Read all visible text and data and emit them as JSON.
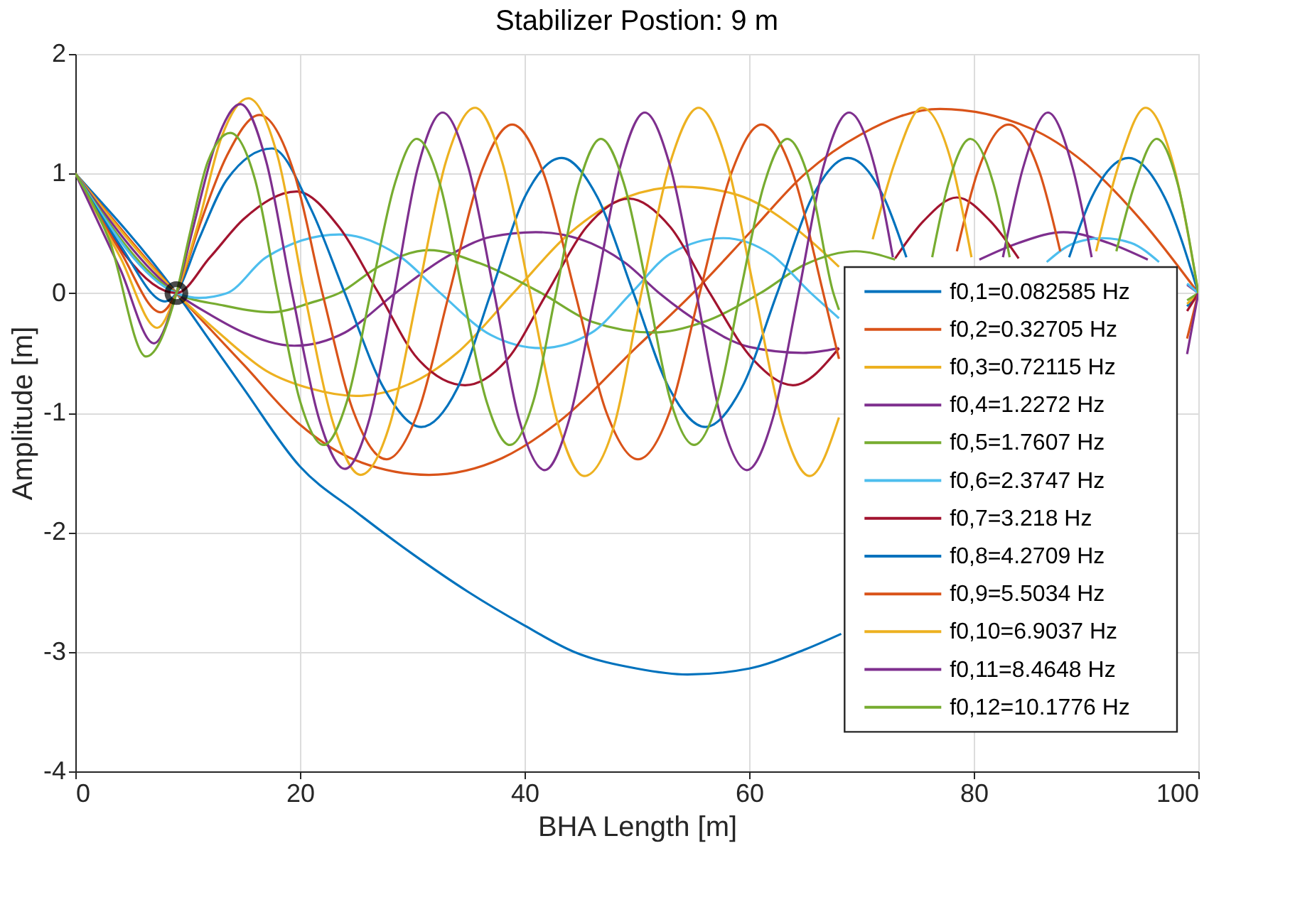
{
  "chart_data": {
    "type": "line",
    "title": "Stabilizer Postion: 9 m",
    "xlabel": "BHA Length [m]",
    "ylabel": "Amplitude [m]",
    "xlim": [
      0,
      100
    ],
    "xticks": [
      0,
      20,
      40,
      60,
      80,
      100
    ],
    "ylim": [
      -4,
      2
    ],
    "yticks": [
      -4,
      -3,
      -2,
      -1,
      0,
      1,
      2
    ],
    "grid": true,
    "legend": "right",
    "marker": "none",
    "line_style": "solid",
    "series": [
      {
        "name": "f0,1=0.082585 Hz",
        "color": "#0072bd",
        "x": [
          0,
          9,
          12,
          15,
          20,
          25,
          30,
          35,
          40,
          44.4,
          50,
          54.5,
          60,
          65,
          68.2,
          70,
          99,
          100
        ],
        "values": [
          1,
          0,
          -0.4,
          -0.8,
          -1.45,
          -1.83,
          -2.18,
          -2.5,
          -2.78,
          -3.0,
          -3.14,
          -3.19,
          -3.14,
          -2.98,
          -2.85,
          null,
          -0.11,
          0
        ]
      },
      {
        "name": "f0,2=0.32705 Hz",
        "color": "#d95319",
        "x": [
          0,
          9,
          12,
          15,
          20,
          25,
          31.5,
          38,
          43,
          50,
          55,
          60,
          65,
          70,
          77,
          85,
          90,
          95,
          100
        ],
        "values": [
          1,
          0,
          -0.3,
          -0.6,
          -1.1,
          -1.4,
          -1.52,
          -1.38,
          -1.08,
          -0.45,
          0,
          0.5,
          1.0,
          1.33,
          1.54,
          1.38,
          1.08,
          0.6,
          0
        ]
      },
      {
        "name": "f0,3=0.72115 Hz",
        "color": "#edb120",
        "x": [
          0,
          9,
          13,
          17,
          21,
          25,
          30,
          34,
          39,
          44,
          49,
          54,
          59,
          64,
          68,
          70,
          99,
          100
        ],
        "values": [
          1,
          0,
          -0.35,
          -0.65,
          -0.8,
          -0.86,
          -0.75,
          -0.5,
          0,
          0.5,
          0.8,
          0.89,
          0.82,
          0.55,
          0.22,
          null,
          -0.09,
          0
        ]
      },
      {
        "name": "f0,4=1.2272 Hz",
        "color": "#7e2f8e",
        "x": [
          0,
          9,
          12,
          15,
          19.5,
          24,
          28.5,
          33,
          37,
          41,
          45,
          49,
          52,
          56,
          60,
          64.8,
          68,
          70,
          80.5,
          84,
          88,
          92,
          95.5,
          97,
          99,
          100
        ],
        "values": [
          1,
          0,
          -0.18,
          -0.33,
          -0.44,
          -0.33,
          0,
          0.3,
          0.47,
          0.51,
          0.45,
          0.25,
          0,
          -0.27,
          -0.45,
          -0.5,
          -0.46,
          null,
          0.28,
          0.42,
          0.51,
          0.42,
          0.28,
          null,
          0.07,
          0
        ]
      },
      {
        "name": "f0,5=1.7607 Hz",
        "color": "#77ac30",
        "x": [
          0,
          9,
          13,
          17.5,
          21,
          23.5,
          27,
          31.5,
          36,
          41.5,
          46,
          51.5,
          56,
          61,
          65,
          69.5,
          73,
          75,
          99,
          100
        ],
        "values": [
          1,
          0,
          -0.1,
          -0.16,
          -0.08,
          0,
          0.22,
          0.36,
          0.25,
          0,
          -0.24,
          -0.33,
          -0.24,
          0,
          0.24,
          0.35,
          0.28,
          null,
          -0.06,
          0
        ]
      },
      {
        "name": "f0,6=2.3747 Hz",
        "color": "#4dbeee",
        "x": [
          0,
          9,
          11,
          13.5,
          17,
          23.5,
          29,
          32.5,
          37,
          41.5,
          46,
          49.5,
          53,
          57.7,
          62,
          65.5,
          68,
          70,
          86.5,
          89,
          91.5,
          94,
          96.5,
          97.5,
          99,
          100
        ],
        "values": [
          1,
          0,
          -0.04,
          0,
          0.3,
          0.49,
          0.3,
          0,
          -0.35,
          -0.46,
          -0.33,
          0,
          0.33,
          0.46,
          0.32,
          0,
          -0.21,
          null,
          0.26,
          0.42,
          0.46,
          0.42,
          0.26,
          null,
          0.08,
          0
        ]
      },
      {
        "name": "f0,7=3.218 Hz",
        "color": "#a2142f",
        "x": [
          0,
          9,
          12,
          15,
          19.7,
          23.5,
          27,
          30.5,
          34.7,
          38.5,
          42,
          45.5,
          49.3,
          53,
          56.5,
          60.3,
          63.9,
          68,
          70,
          73,
          75.5,
          78.5,
          81.5,
          84,
          86,
          99,
          100
        ],
        "values": [
          1,
          0,
          0.3,
          0.62,
          0.85,
          0.55,
          0,
          -0.55,
          -0.77,
          -0.55,
          0,
          0.55,
          0.79,
          0.55,
          0,
          -0.55,
          -0.77,
          -0.46,
          null,
          0.29,
          0.6,
          0.8,
          0.6,
          0.29,
          null,
          -0.15,
          0
        ]
      },
      {
        "name": "f0,8=4.2709 Hz",
        "color": "#0072bd",
        "x": [
          0,
          4,
          8,
          9,
          11,
          13.5,
          17.5,
          21,
          24,
          27.5,
          30.8,
          34,
          37,
          40,
          43.3,
          46.5,
          49.7,
          52.9,
          56.1,
          59.3,
          62.5,
          65.6,
          68.8,
          72,
          74,
          76,
          88.5,
          90.5,
          93.8,
          97,
          100
        ],
        "values": [
          1,
          0.4,
          -0.07,
          0,
          0.45,
          0.95,
          1.21,
          0.7,
          0,
          -0.8,
          -1.12,
          -0.8,
          0,
          0.8,
          1.13,
          0.8,
          0,
          -0.8,
          -1.12,
          -0.8,
          0,
          0.8,
          1.13,
          0.8,
          0.3,
          null,
          0.3,
          0.8,
          1.13,
          0.8,
          0
        ]
      },
      {
        "name": "f0,9=5.5034 Hz",
        "color": "#d95319",
        "x": [
          0,
          4,
          7.6,
          9,
          11,
          13.5,
          16.4,
          19.5,
          22,
          24.8,
          27.7,
          30.5,
          33.3,
          36.1,
          38.9,
          41.7,
          44.5,
          47.3,
          50.1,
          52.9,
          55.6,
          58.4,
          61.1,
          63.9,
          66.6,
          68,
          70,
          78.5,
          80.3,
          83.1,
          85.9,
          87.7,
          90,
          99,
          100
        ],
        "values": [
          1,
          0.35,
          -0.16,
          0,
          0.55,
          1.15,
          1.49,
          1.0,
          0,
          -1.0,
          -1.39,
          -1.0,
          0,
          1.0,
          1.41,
          1.0,
          0,
          -1.0,
          -1.39,
          -1.0,
          0,
          1.0,
          1.41,
          1.0,
          0,
          -0.55,
          null,
          0.35,
          1.0,
          1.41,
          1.0,
          0.35,
          null,
          -0.38,
          0
        ]
      },
      {
        "name": "f0,10=6.9037 Hz",
        "color": "#edb120",
        "x": [
          0,
          4,
          7.3,
          9,
          11,
          13,
          15.4,
          18,
          20.4,
          23,
          25.4,
          28,
          30.5,
          33,
          35.6,
          38,
          40.5,
          43,
          45.3,
          48,
          50.4,
          53,
          55.5,
          58,
          60.5,
          63,
          65.4,
          68,
          70,
          71,
          73,
          75.4,
          78,
          79.8,
          85,
          90.9,
          93,
          95.3,
          97.7,
          100
        ],
        "values": [
          1,
          0.3,
          -0.29,
          0,
          0.6,
          1.3,
          1.63,
          1.15,
          0,
          -1.1,
          -1.52,
          -1.1,
          0,
          1.1,
          1.55,
          1.1,
          0,
          -1.1,
          -1.53,
          -1.1,
          0,
          1.1,
          1.55,
          1.1,
          0,
          -1.1,
          -1.53,
          -1.04,
          null,
          0.45,
          1.1,
          1.55,
          1.1,
          0.3,
          null,
          0.35,
          1.1,
          1.55,
          1.1,
          0
        ]
      },
      {
        "name": "f0,11=8.4648 Hz",
        "color": "#7e2f8e",
        "x": [
          0,
          4,
          7,
          9,
          10.5,
          12.5,
          14.7,
          17,
          19.3,
          21.7,
          24,
          26.2,
          28.4,
          30.5,
          32.7,
          35,
          37.3,
          39.5,
          41.8,
          44,
          46.3,
          48.5,
          50.7,
          53,
          55.3,
          57.5,
          59.8,
          62.1,
          64.4,
          66.6,
          68.9,
          71.2,
          72.8,
          75,
          82.6,
          84.4,
          86.6,
          88.8,
          90.5,
          95,
          99,
          100
        ],
        "values": [
          1,
          0.2,
          -0.42,
          0,
          0.55,
          1.25,
          1.58,
          1.1,
          0,
          -1.05,
          -1.47,
          -1.05,
          0,
          1.05,
          1.51,
          1.05,
          0,
          -1.05,
          -1.48,
          -1.05,
          0,
          1.05,
          1.51,
          1.05,
          0,
          -1.05,
          -1.48,
          -1.05,
          0,
          1.05,
          1.51,
          1.05,
          0.3,
          null,
          0.3,
          1.05,
          1.51,
          1.05,
          0.3,
          null,
          -0.51,
          0
        ]
      },
      {
        "name": "f0,12=10.1776 Hz",
        "color": "#77ac30",
        "x": [
          0,
          3,
          6.3,
          9,
          10.2,
          11.8,
          13.8,
          16,
          18,
          20,
          22.1,
          24.2,
          26.3,
          28.4,
          30.4,
          32.5,
          34.5,
          36.6,
          38.7,
          40.8,
          42.8,
          44.8,
          46.8,
          48.9,
          51,
          53,
          55.1,
          57.2,
          59.2,
          61.3,
          63.4,
          65.5,
          67.5,
          68,
          70,
          76.3,
          77.7,
          79.7,
          81.8,
          83.2,
          88,
          92.7,
          94.3,
          96.3,
          98.2,
          100
        ],
        "values": [
          1,
          0.45,
          -0.53,
          0,
          0.5,
          1.1,
          1.34,
          0.95,
          0,
          -0.9,
          -1.27,
          -0.9,
          0,
          0.9,
          1.29,
          0.9,
          0,
          -0.9,
          -1.27,
          -0.9,
          0,
          0.9,
          1.29,
          0.9,
          0,
          -0.9,
          -1.27,
          -0.9,
          0,
          0.9,
          1.29,
          0.9,
          0,
          -0.14,
          null,
          0.3,
          0.9,
          1.29,
          0.9,
          0.3,
          null,
          0.35,
          0.9,
          1.29,
          0.9,
          0
        ]
      },
      {
        "type": "scatter",
        "color": "#000000",
        "marker": "circle",
        "x": [
          9
        ],
        "values": [
          0
        ]
      }
    ]
  }
}
